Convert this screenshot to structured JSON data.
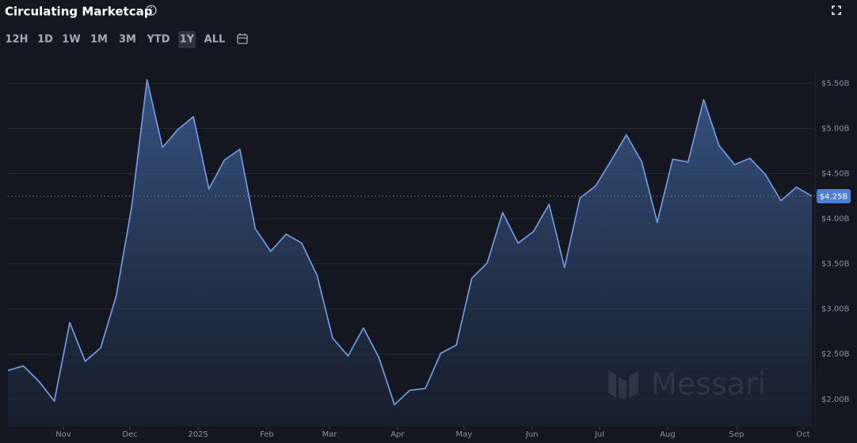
{
  "chart_data": {
    "type": "area",
    "title": "Circulating Marketcap",
    "toolbar": {
      "ranges": [
        "12H",
        "1D",
        "1W",
        "1M",
        "3M",
        "YTD",
        "1Y",
        "ALL"
      ],
      "selected": "1Y"
    },
    "watermark": "Messari",
    "series": [
      {
        "color": "#6e95d8",
        "values": [
          2.32,
          2.37,
          2.2,
          1.98,
          2.85,
          2.42,
          2.57,
          3.14,
          4.13,
          5.54,
          4.79,
          4.99,
          5.13,
          4.33,
          4.65,
          4.77,
          3.89,
          3.64,
          3.83,
          3.73,
          3.37,
          2.68,
          2.48,
          2.79,
          2.46,
          1.94,
          2.1,
          2.12,
          2.51,
          2.6,
          3.34,
          3.51,
          4.07,
          3.73,
          3.86,
          4.16,
          3.46,
          4.23,
          4.36,
          4.64,
          4.93,
          4.63,
          3.96,
          4.66,
          4.63,
          5.32,
          4.81,
          4.6,
          4.67,
          4.49,
          4.2,
          4.35,
          4.25
        ]
      }
    ],
    "current": {
      "value": 4.25,
      "label": "$4.25B"
    },
    "xlim": [
      0,
      52
    ],
    "xticks": [
      {
        "value": 3.59,
        "label": "Nov"
      },
      {
        "value": 7.89,
        "label": "Dec"
      },
      {
        "value": 12.3,
        "label": "2025"
      },
      {
        "value": 16.75,
        "label": "Feb"
      },
      {
        "value": 20.8,
        "label": "Mar"
      },
      {
        "value": 25.2,
        "label": "Apr"
      },
      {
        "value": 29.5,
        "label": "May"
      },
      {
        "value": 33.9,
        "label": "Jun"
      },
      {
        "value": 38.27,
        "label": "Jul"
      },
      {
        "value": 42.67,
        "label": "Aug"
      },
      {
        "value": 47.13,
        "label": "Sep"
      },
      {
        "value": 51.43,
        "label": "Oct"
      }
    ],
    "ylim": [
      1.7,
      5.6
    ],
    "yticks": [
      {
        "value": 2.0,
        "label": "$2.00B"
      },
      {
        "value": 2.5,
        "label": "$2.50B"
      },
      {
        "value": 3.0,
        "label": "$3.00B"
      },
      {
        "value": 3.5,
        "label": "$3.50B"
      },
      {
        "value": 4.0,
        "label": "$4.00B"
      },
      {
        "value": 4.5,
        "label": "$4.50B"
      },
      {
        "value": 5.0,
        "label": "$5.00B"
      },
      {
        "value": 5.5,
        "label": "$5.50B"
      }
    ],
    "grid": true
  }
}
